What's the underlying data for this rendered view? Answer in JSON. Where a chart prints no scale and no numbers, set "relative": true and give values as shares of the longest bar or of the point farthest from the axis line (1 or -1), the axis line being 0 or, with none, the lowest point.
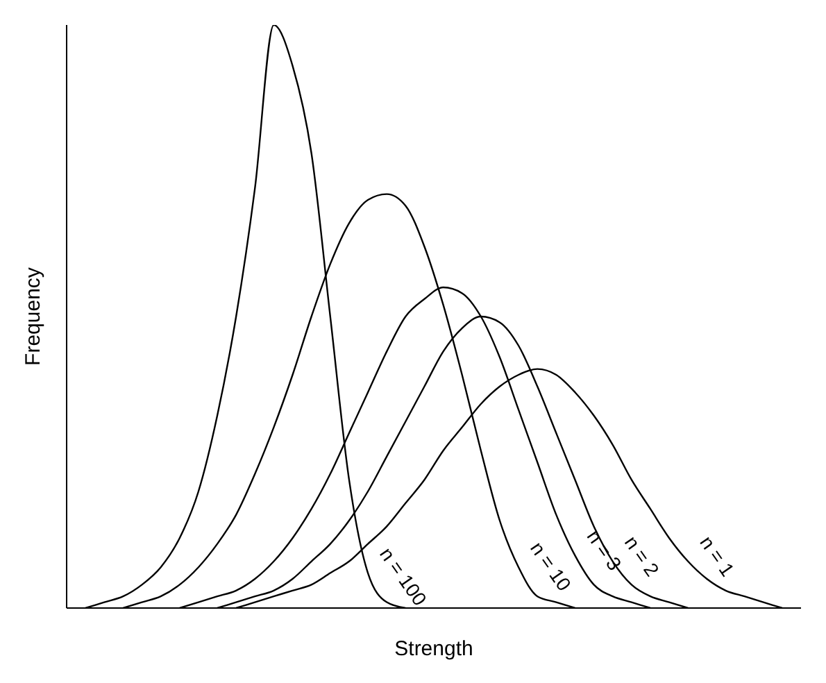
{
  "chart_data": {
    "type": "line",
    "relative": true,
    "xlabel": "Strength",
    "ylabel": "Frequency",
    "legend": false,
    "marker": "none",
    "categories": [
      null,
      null,
      null,
      null,
      null,
      null,
      null,
      null,
      null,
      null,
      null,
      null,
      null,
      null,
      null,
      null,
      null,
      null,
      null,
      null,
      null,
      null,
      null,
      null,
      null,
      null,
      null,
      null,
      null,
      null,
      null,
      null,
      null,
      null,
      null,
      null,
      null,
      null,
      null,
      null
    ],
    "series": [
      {
        "name": "n = 1",
        "color": "#000000",
        "values": [
          null,
          null,
          null,
          null,
          null,
          null,
          null,
          null,
          null,
          0,
          0.01,
          0.02,
          0.03,
          0.04,
          0.06,
          0.08,
          0.11,
          0.14,
          0.18,
          0.22,
          0.27,
          0.31,
          0.35,
          0.38,
          0.4,
          0.41,
          0.4,
          0.37,
          0.33,
          0.28,
          0.22,
          0.17,
          0.12,
          0.08,
          0.05,
          0.03,
          0.02,
          0.01,
          0,
          null
        ]
      },
      {
        "name": "n = 2",
        "color": "#000000",
        "values": [
          null,
          null,
          null,
          null,
          null,
          null,
          null,
          null,
          0,
          0.01,
          0.02,
          0.03,
          0.05,
          0.08,
          0.11,
          0.15,
          0.2,
          0.26,
          0.32,
          0.38,
          0.44,
          0.48,
          0.5,
          0.49,
          0.45,
          0.38,
          0.3,
          0.22,
          0.14,
          0.08,
          0.04,
          0.02,
          0.01,
          0,
          null,
          null,
          null,
          null,
          null,
          null
        ]
      },
      {
        "name": "n = 3",
        "color": "#000000",
        "values": [
          null,
          null,
          null,
          null,
          null,
          null,
          0,
          0.01,
          0.02,
          0.03,
          0.05,
          0.08,
          0.12,
          0.17,
          0.23,
          0.3,
          0.37,
          0.44,
          0.5,
          0.53,
          0.55,
          0.54,
          0.5,
          0.43,
          0.34,
          0.25,
          0.16,
          0.09,
          0.04,
          0.02,
          0.01,
          0,
          null,
          null,
          null,
          null,
          null,
          null,
          null,
          null
        ]
      },
      {
        "name": "n = 10",
        "color": "#000000",
        "values": [
          null,
          null,
          null,
          0,
          0.01,
          0.02,
          0.04,
          0.07,
          0.11,
          0.16,
          0.23,
          0.31,
          0.4,
          0.5,
          0.59,
          0.66,
          0.7,
          0.71,
          0.69,
          0.62,
          0.52,
          0.4,
          0.27,
          0.15,
          0.07,
          0.02,
          0.01,
          0,
          null,
          null,
          null,
          null,
          null,
          null,
          null,
          null,
          null,
          null,
          null,
          null
        ]
      },
      {
        "name": "n = 100",
        "color": "#000000",
        "values": [
          null,
          0,
          0.01,
          0.02,
          0.04,
          0.07,
          0.12,
          0.2,
          0.33,
          0.5,
          0.72,
          1,
          0.93,
          0.78,
          0.5,
          0.22,
          0.06,
          0.01,
          0,
          null,
          null,
          null,
          null,
          null,
          null,
          null,
          null,
          null,
          null,
          null,
          null,
          null,
          null,
          null,
          null,
          null,
          null,
          null,
          null,
          null
        ]
      }
    ]
  }
}
